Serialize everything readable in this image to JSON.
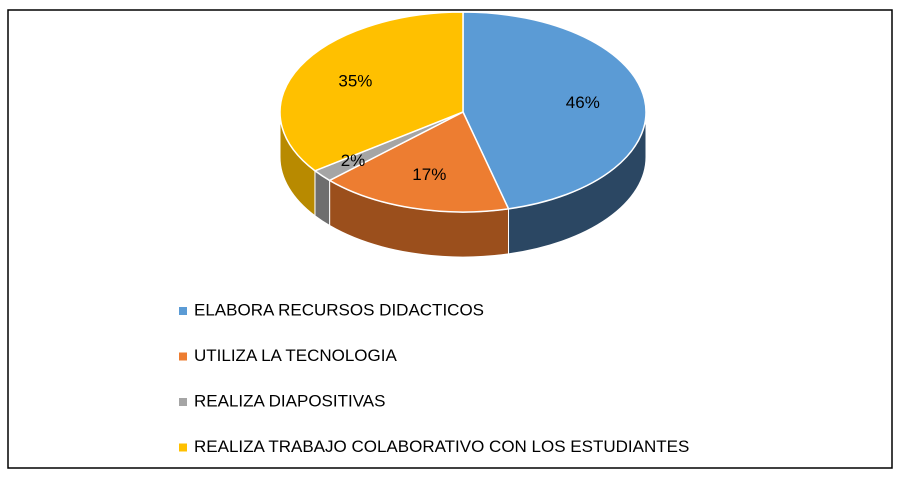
{
  "chart_data": {
    "type": "pie3d",
    "categories": [
      "ELABORA RECURSOS DIDACTICOS",
      "UTILIZA LA TECNOLOGIA",
      "REALIZA DIAPOSITIVAS",
      "REALIZA TRABAJO COLABORATIVO CON LOS ESTUDIANTES"
    ],
    "values": [
      46,
      17,
      2,
      35
    ],
    "value_labels": [
      "46%",
      "17%",
      "2%",
      "35%"
    ],
    "colors": [
      "#5b9bd5",
      "#ed7d31",
      "#a5a5a5",
      "#ffc000"
    ],
    "side_colors": [
      "#2b4763",
      "#9b4f1c",
      "#6e6e6e",
      "#b88a00"
    ],
    "legend": "bottom"
  }
}
